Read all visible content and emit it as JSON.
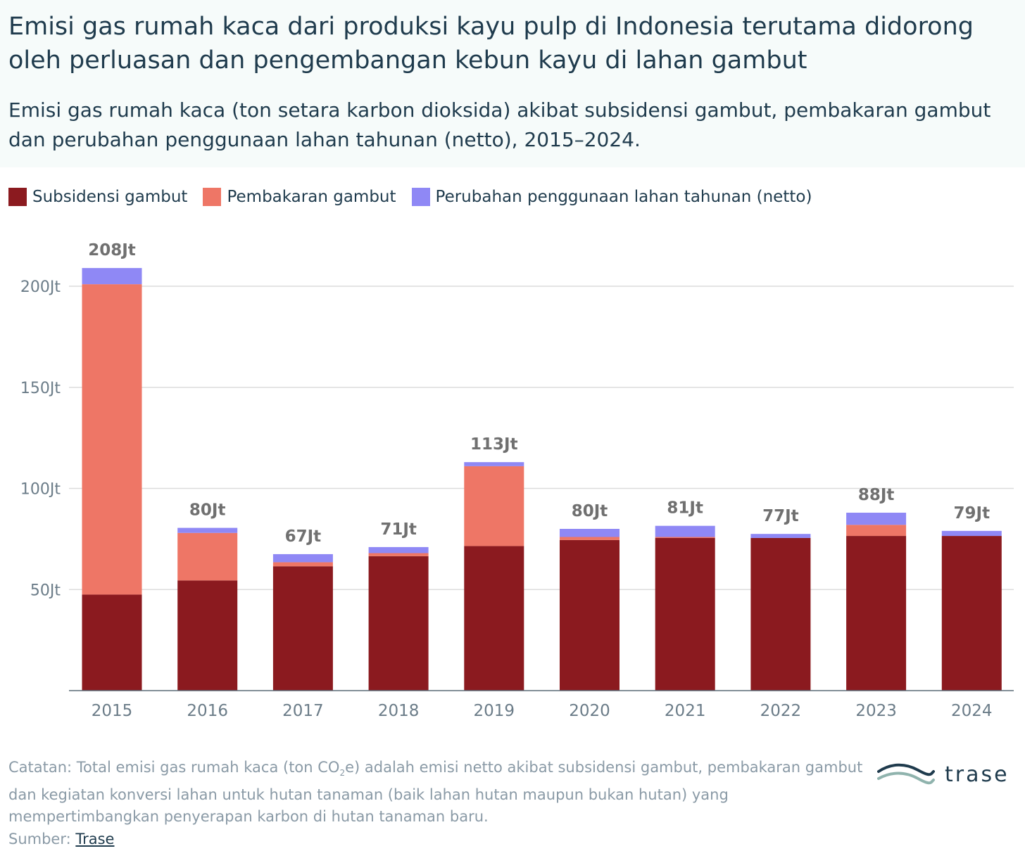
{
  "title": "Emisi gas rumah kaca dari produksi kayu pulp di Indonesia terutama didorong oleh perluasan dan pengembangan kebun kayu di lahan gambut",
  "subtitle": "Emisi gas rumah kaca (ton setara karbon dioksida) akibat subsidensi gambut, pembakaran gambut dan perubahan penggunaan lahan tahunan (netto), 2015–2024.",
  "footnote": {
    "prefix": "Catatan: Total emisi gas rumah kaca (ton CO",
    "sub": "2",
    "suffix": "e) adalah emisi netto akibat subsidensi gambut, pembakaran gambut dan kegiatan konversi lahan untuk hutan tanaman (baik lahan hutan maupun bukan hutan) yang mempertimbangkan penyerapan karbon di hutan tanaman baru."
  },
  "source": {
    "label": "Sumber:",
    "link_text": "Trase"
  },
  "logo_text": "trase",
  "colors": {
    "subsidensi": "#8b1a1f",
    "pembakaran": "#ee7666",
    "perubahan": "#8f88f5",
    "grid": "#dcdcdc",
    "axis_text": "#6b7c88",
    "total_label": "#707070"
  },
  "chart_data": {
    "type": "bar",
    "stacked": true,
    "categories": [
      "2015",
      "2016",
      "2017",
      "2018",
      "2019",
      "2020",
      "2021",
      "2022",
      "2023",
      "2024"
    ],
    "series": [
      {
        "name": "Subsidensi gambut",
        "values": [
          47.5,
          54.5,
          61.5,
          66.5,
          71.5,
          74.5,
          75.5,
          75.5,
          76.5,
          76.5
        ]
      },
      {
        "name": "Pembakaran gambut",
        "values": [
          153.5,
          23.5,
          2,
          1.5,
          39.5,
          1.5,
          0.5,
          0,
          5.5,
          0
        ]
      },
      {
        "name": "Perubahan penggunaan lahan tahunan (netto)",
        "values": [
          8,
          2.5,
          4,
          3,
          2,
          4,
          5.5,
          2,
          6,
          2.5
        ]
      }
    ],
    "total_labels": [
      "208Jt",
      "80Jt",
      "67Jt",
      "71Jt",
      "113Jt",
      "80Jt",
      "81Jt",
      "77Jt",
      "88Jt",
      "79Jt"
    ],
    "y_ticks": [
      {
        "value": 50,
        "label": "50Jt"
      },
      {
        "value": 100,
        "label": "100Jt"
      },
      {
        "value": 150,
        "label": "150Jt"
      },
      {
        "value": 200,
        "label": "200Jt"
      }
    ],
    "ylim": [
      0,
      210
    ],
    "grid": true,
    "legend_position": "top-left"
  }
}
